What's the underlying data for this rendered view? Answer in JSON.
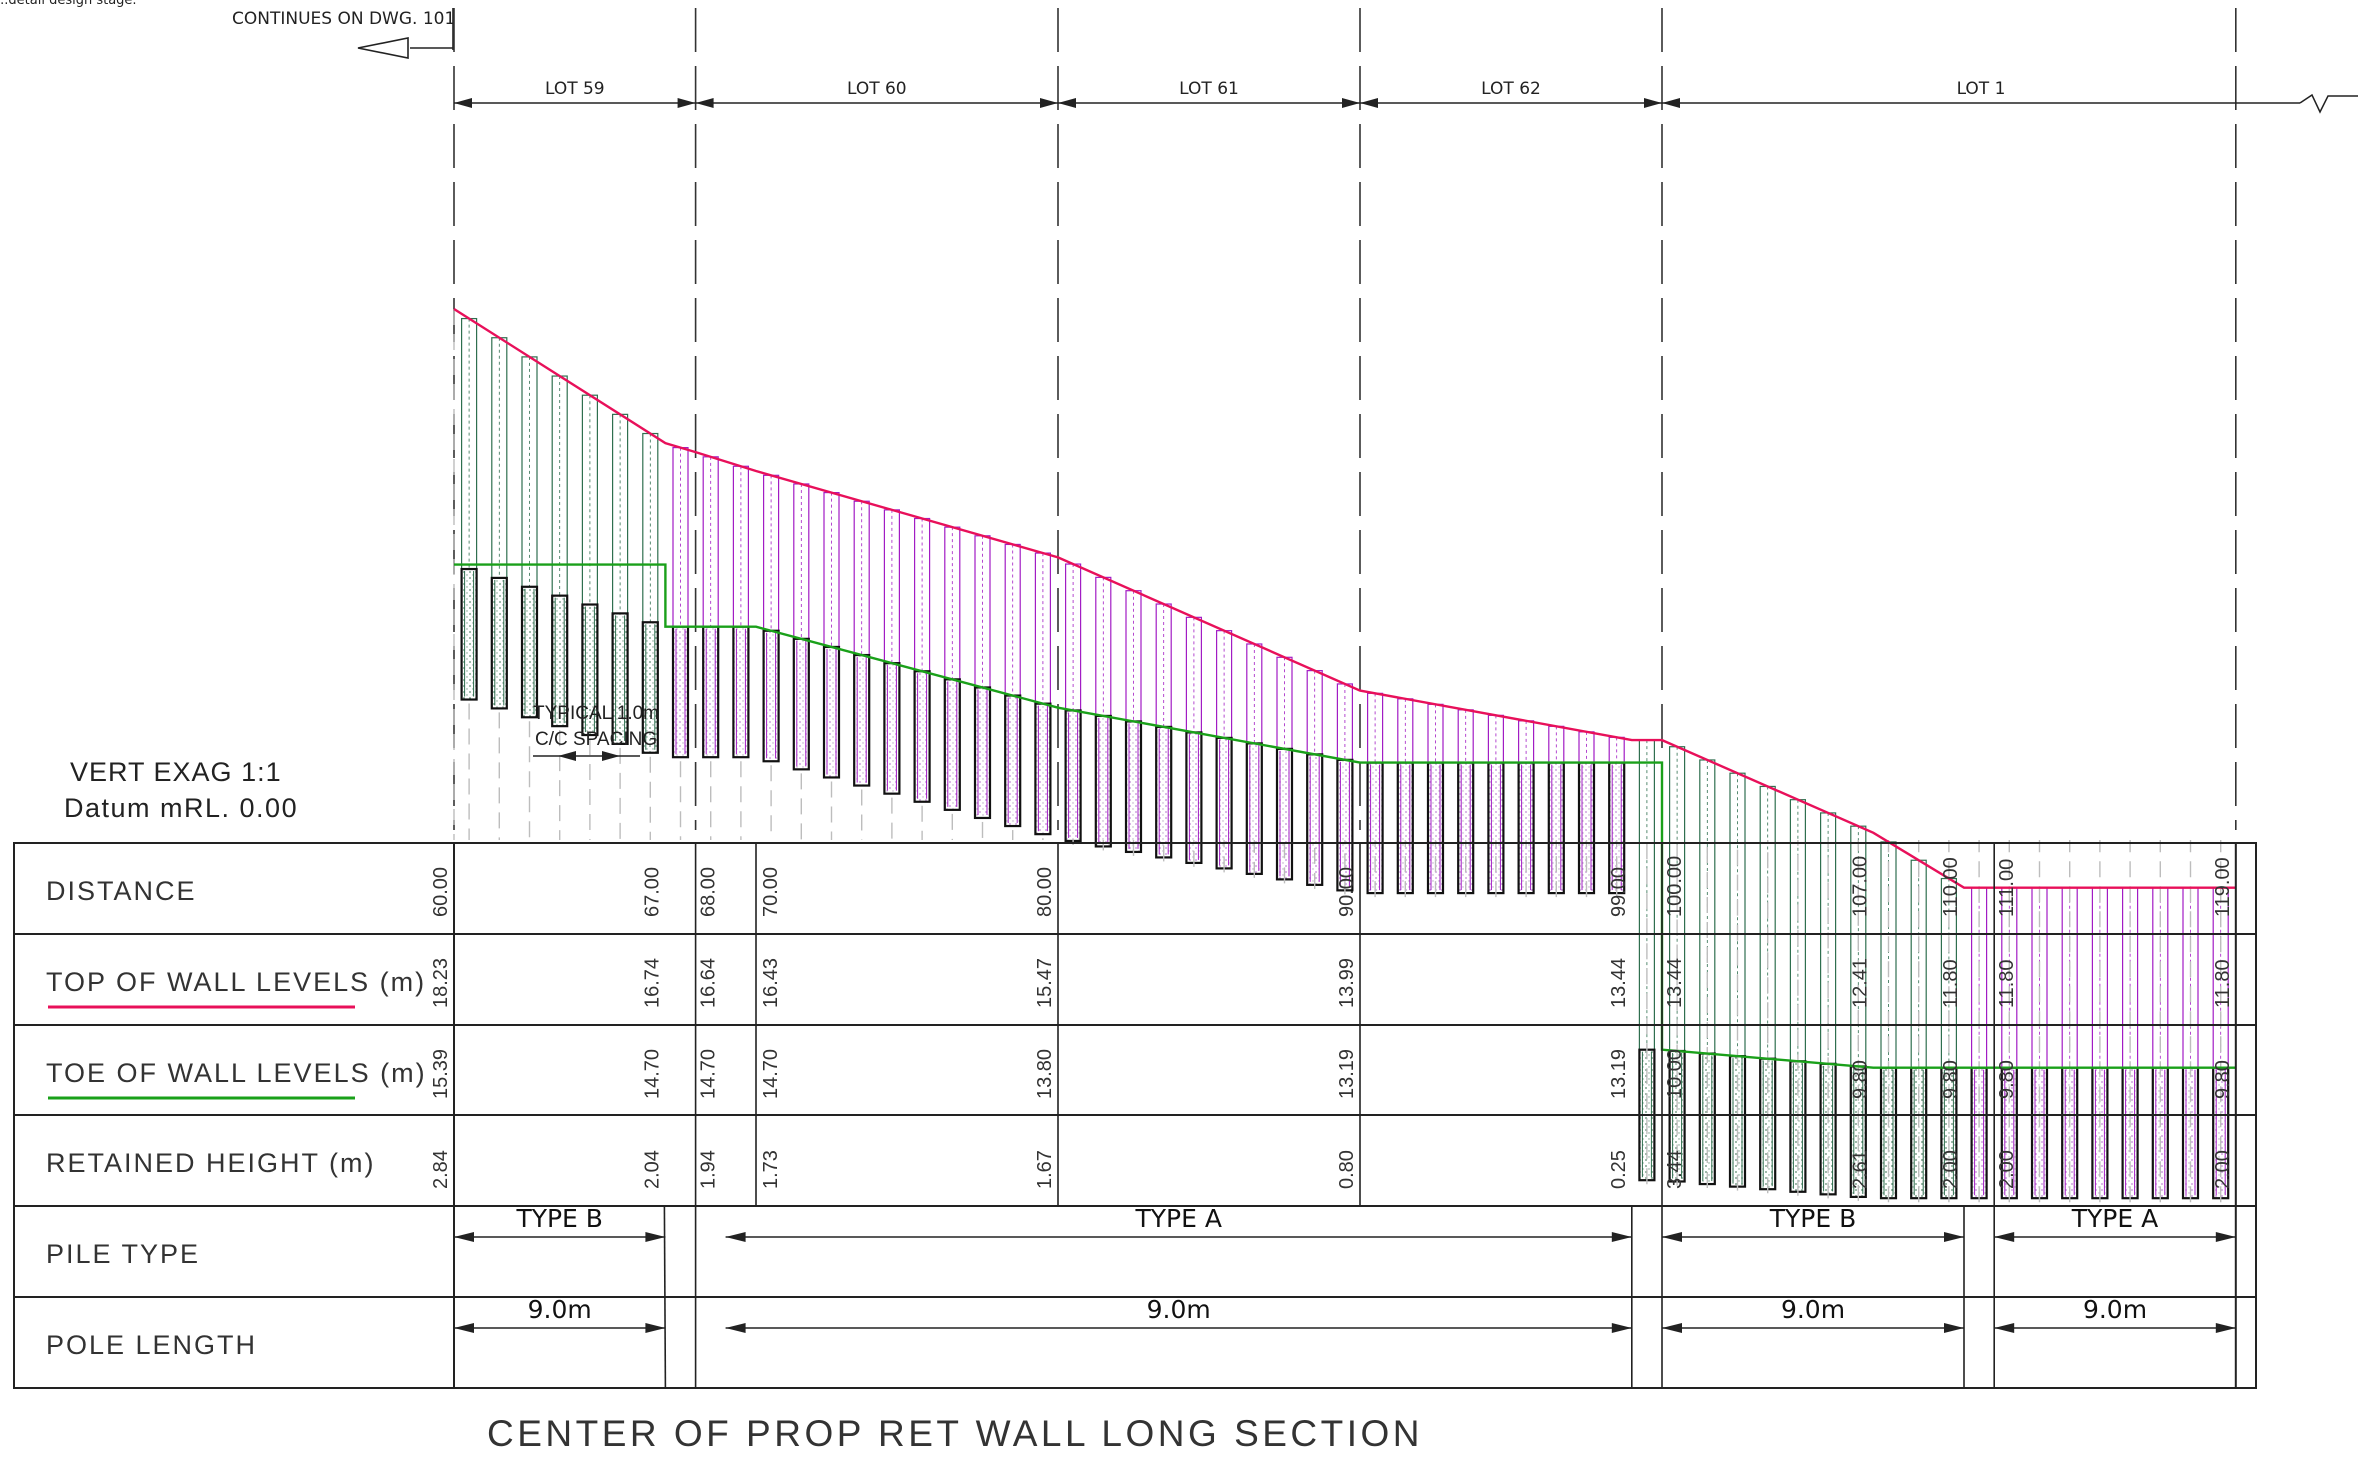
{
  "header": {
    "corner_text": "...detail design stage.",
    "continues_note": "CONTINUES ON DWG. 101"
  },
  "lots": [
    {
      "label": "LOT 59",
      "from": 60,
      "to": 68
    },
    {
      "label": "LOT 60",
      "from": 68,
      "to": 80
    },
    {
      "label": "LOT 61",
      "from": 80,
      "to": 90
    },
    {
      "label": "LOT 62",
      "from": 90,
      "to": 100
    },
    {
      "label": "LOT 1",
      "from": 100,
      "to": 119
    }
  ],
  "notes": {
    "spacing_line1": "TYPICAL 1.0m",
    "spacing_line2": "C/C SPACING",
    "vert_exag": "VERT EXAG  1:1",
    "datum": "Datum mRL. 0.00"
  },
  "colors": {
    "top_of_wall": "#e8105a",
    "toe_of_wall": "#1aa01a",
    "pile_type_b": "#2f6f4f",
    "pile_type_a": "#a21cc4",
    "pile_toe_outline": "#111111",
    "table_lines": "#222222",
    "text": "#222222"
  },
  "chart_data": {
    "type": "line",
    "title": "CENTER OF PROP RET WALL LONG SECTION",
    "xlabel": "DISTANCE",
    "ylabel": "",
    "series": [
      {
        "name": "TOP OF WALL LEVELS (m)",
        "x": [
          60,
          67,
          68,
          70,
          80,
          90,
          99,
          100,
          107,
          110,
          111,
          119
        ],
        "values": [
          18.23,
          16.74,
          16.64,
          16.43,
          15.47,
          13.99,
          13.44,
          13.44,
          12.41,
          11.8,
          11.8,
          11.8
        ]
      },
      {
        "name": "TOE OF WALL LEVELS (m)",
        "x": [
          60,
          67,
          68,
          70,
          80,
          90,
          99,
          100,
          107,
          110,
          111,
          119
        ],
        "values": [
          15.39,
          14.7,
          14.7,
          14.7,
          13.8,
          13.19,
          13.19,
          10.0,
          9.8,
          9.8,
          9.8,
          9.8
        ]
      }
    ],
    "pile_spacing_m": 1.0,
    "pile_length_m": 9.0
  },
  "table": {
    "rows": [
      {
        "label": "DISTANCE",
        "values": [
          "60.00",
          "67.00",
          "68.00",
          "70.00",
          "80.00",
          "90.00",
          "99.00",
          "100.00",
          "107.00",
          "110.00",
          "111.00",
          "119.00"
        ]
      },
      {
        "label": "TOP OF WALL LEVELS (m)",
        "values": [
          "18.23",
          "16.74",
          "16.64",
          "16.43",
          "15.47",
          "13.99",
          "13.44",
          "13.44",
          "12.41",
          "11.80",
          "11.80",
          "11.80"
        ]
      },
      {
        "label": "TOE OF WALL LEVELS (m)",
        "values": [
          "15.39",
          "14.70",
          "14.70",
          "14.70",
          "13.80",
          "13.19",
          "13.19",
          "10.00",
          "9.80",
          "9.80",
          "9.80",
          "9.80"
        ]
      },
      {
        "label": "RETAINED HEIGHT (m)",
        "values": [
          "2.84",
          "2.04",
          "1.94",
          "1.73",
          "1.67",
          "0.80",
          "0.25",
          "3.44",
          "2.61",
          "2.00",
          "2.00",
          "2.00"
        ]
      },
      {
        "label": "PILE TYPE"
      },
      {
        "label": "POLE LENGTH"
      }
    ],
    "pile_spans": [
      {
        "type": "TYPE B",
        "length": "9.0m",
        "from": 60,
        "to": 67
      },
      {
        "type": "TYPE A",
        "length": "9.0m",
        "from": 70,
        "to": 99
      },
      {
        "type": "TYPE B",
        "length": "9.0m",
        "from": 100,
        "to": 110
      },
      {
        "type": "TYPE A",
        "length": "9.0m",
        "from": 111,
        "to": 119
      }
    ]
  }
}
